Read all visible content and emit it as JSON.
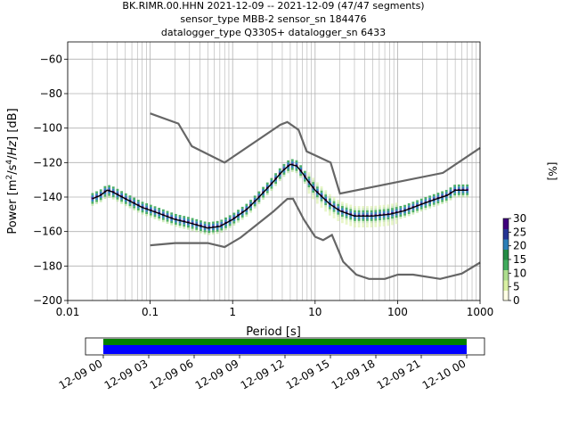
{
  "chart_data": {
    "type": "heatmap",
    "title_lines": [
      "BK.RIMR.00.HHN   2021-12-09 -- 2021-12-09  (47/47 segments)",
      "sensor_type MBB-2 sensor_sn 184476",
      "datalogger_type Q330S+ datalogger_sn 6433"
    ],
    "xlabel": "Period [s]",
    "ylabel": "Power [m²/s⁴/Hz] [dB]",
    "xscale": "log",
    "xlim": [
      0.01,
      1000
    ],
    "ylim": [
      -200,
      -50
    ],
    "x_ticks": [
      0.01,
      0.1,
      1,
      10,
      100,
      1000
    ],
    "x_tick_labels": [
      "0.01",
      "0.1",
      "1",
      "10",
      "100",
      "1000"
    ],
    "y_ticks": [
      -200,
      -180,
      -160,
      -140,
      -120,
      -100,
      -80,
      -60
    ],
    "y_tick_labels": [
      "−200",
      "−180",
      "−160",
      "−140",
      "−120",
      "−100",
      "−80",
      "−60"
    ],
    "grid": true,
    "colorbar": {
      "label": "[%]",
      "range": [
        0,
        30
      ],
      "ticks": [
        0,
        5,
        10,
        15,
        20,
        25,
        30
      ],
      "colors": [
        "#ffffe5",
        "#d9f0a3",
        "#addd8e",
        "#41ab5d",
        "#238b45",
        "#2c7fb8",
        "#253494",
        "#3f007d"
      ]
    },
    "series": [
      {
        "role": "mean",
        "color": "#000000",
        "points": [
          [
            0.02,
            -141
          ],
          [
            0.025,
            -139
          ],
          [
            0.03,
            -136
          ],
          [
            0.035,
            -137
          ],
          [
            0.05,
            -141
          ],
          [
            0.08,
            -146
          ],
          [
            0.12,
            -149
          ],
          [
            0.2,
            -153
          ],
          [
            0.3,
            -155
          ],
          [
            0.5,
            -158
          ],
          [
            0.7,
            -157
          ],
          [
            1,
            -153
          ],
          [
            1.5,
            -147
          ],
          [
            2,
            -141
          ],
          [
            3,
            -132
          ],
          [
            4,
            -125
          ],
          [
            5,
            -121
          ],
          [
            6,
            -122
          ],
          [
            7,
            -126
          ],
          [
            8,
            -130
          ],
          [
            10,
            -136
          ],
          [
            15,
            -144
          ],
          [
            20,
            -148
          ],
          [
            30,
            -151
          ],
          [
            50,
            -151
          ],
          [
            80,
            -150
          ],
          [
            120,
            -148
          ],
          [
            200,
            -144
          ],
          [
            300,
            -141
          ],
          [
            400,
            -139
          ],
          [
            500,
            -136
          ],
          [
            700,
            -136
          ]
        ]
      },
      {
        "role": "high-noise-model",
        "color": "#666666",
        "points": [
          [
            0.1,
            -91.5
          ],
          [
            0.22,
            -97.4
          ],
          [
            0.32,
            -110.5
          ],
          [
            0.8,
            -120
          ],
          [
            3.8,
            -98
          ],
          [
            4.6,
            -96.5
          ],
          [
            6.3,
            -101
          ],
          [
            7.9,
            -113.5
          ],
          [
            15.4,
            -120
          ],
          [
            20,
            -138
          ],
          [
            354.8,
            -126
          ],
          [
            1000,
            -111.5
          ]
        ]
      },
      {
        "role": "low-noise-model",
        "color": "#666666",
        "points": [
          [
            0.1,
            -168
          ],
          [
            0.2,
            -166.7
          ],
          [
            0.5,
            -166.7
          ],
          [
            0.8,
            -169
          ],
          [
            1.25,
            -163.5
          ],
          [
            3.1,
            -148.5
          ],
          [
            4.6,
            -141.1
          ],
          [
            5.4,
            -141
          ],
          [
            7.3,
            -153
          ],
          [
            10,
            -163
          ],
          [
            12.5,
            -165
          ],
          [
            16,
            -162
          ],
          [
            21.9,
            -177.5
          ],
          [
            31.6,
            -185
          ],
          [
            45,
            -187.5
          ],
          [
            70,
            -187.5
          ],
          [
            101,
            -185
          ],
          [
            154,
            -185
          ],
          [
            328,
            -187.5
          ],
          [
            600,
            -184.4
          ],
          [
            1000,
            -178
          ]
        ]
      }
    ],
    "time_axis": {
      "tick_labels": [
        "12-09 00",
        "12-09 03",
        "12-09 06",
        "12-09 09",
        "12-09 12",
        "12-09 15",
        "12-09 18",
        "12-09 21",
        "12-10 00"
      ],
      "coverage_colors": [
        "#008000",
        "#0000ff"
      ]
    }
  }
}
